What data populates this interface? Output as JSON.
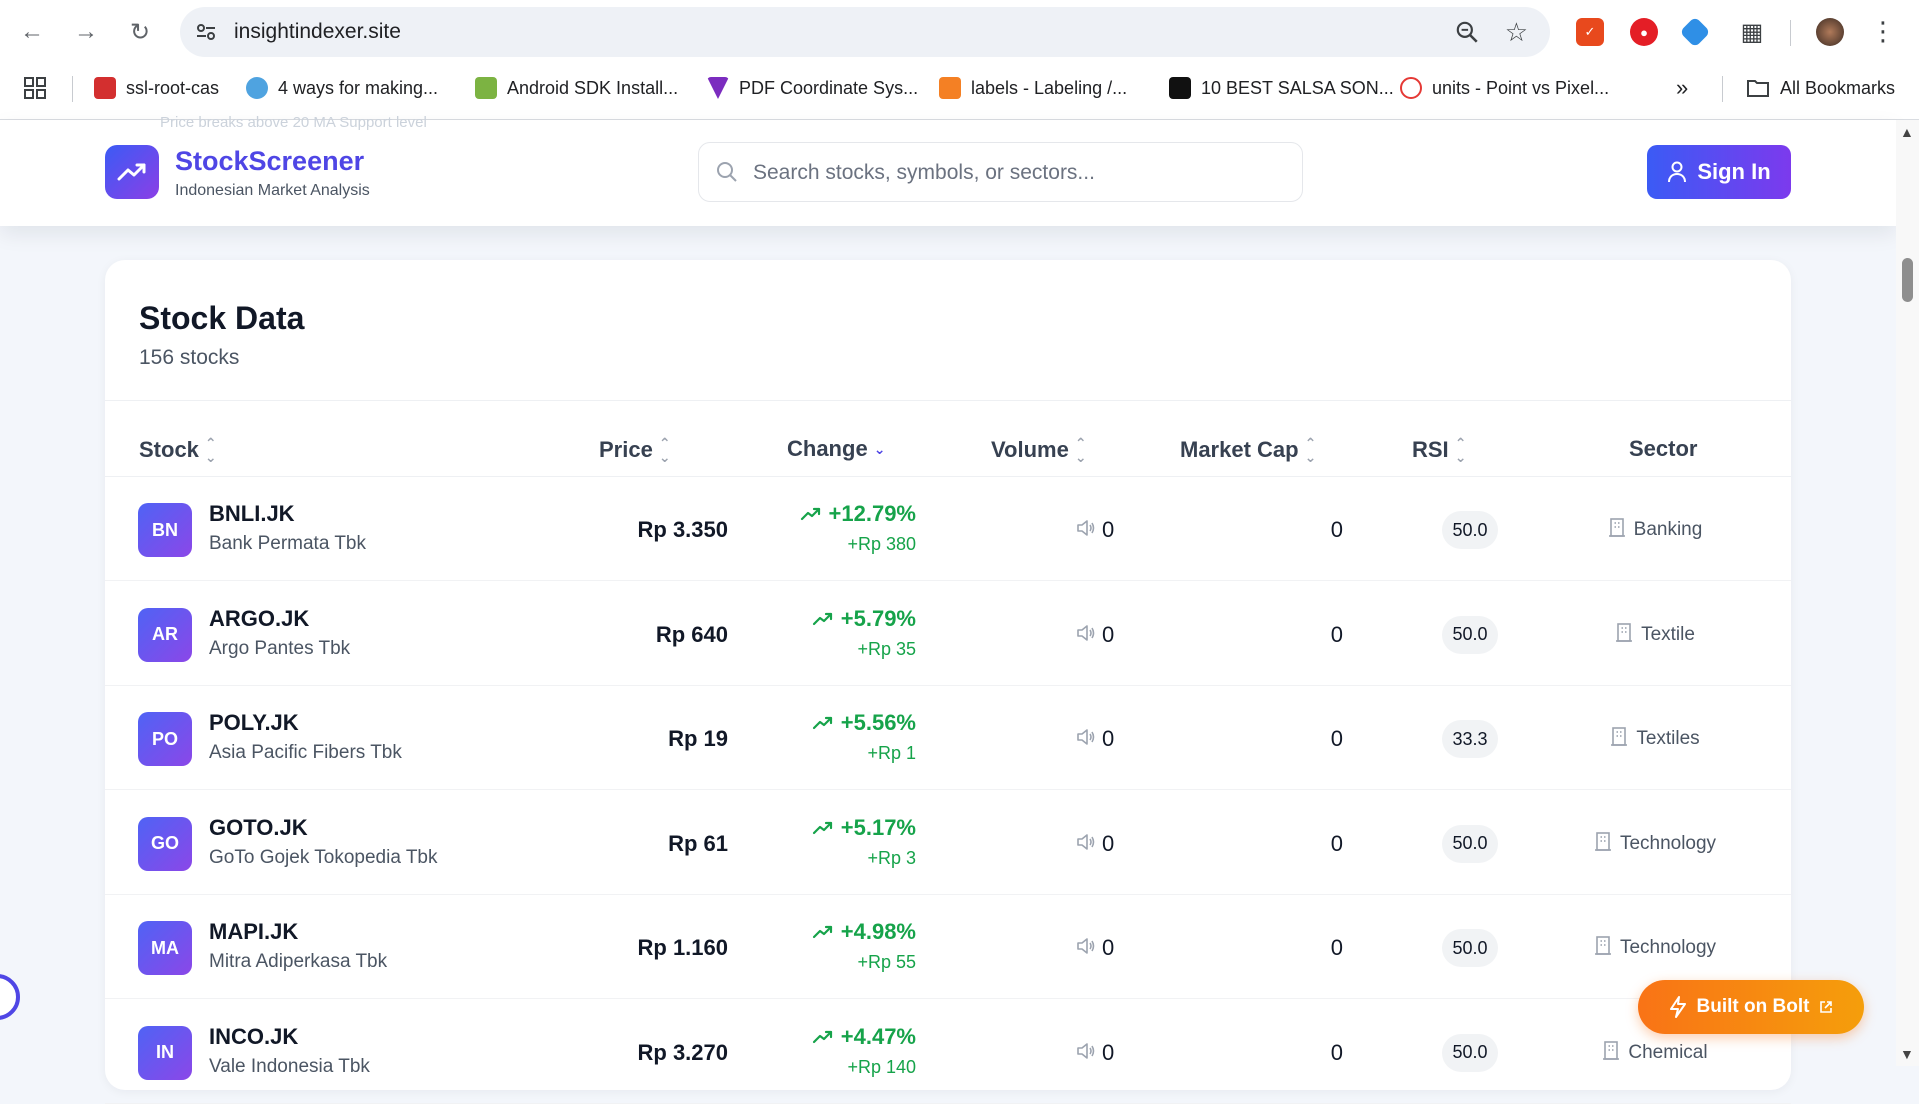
{
  "browser": {
    "url": "insightindexer.site",
    "bookmarks": [
      {
        "label": "ssl-root-cas",
        "color": "#d32f2f"
      },
      {
        "label": "4 ways for making...",
        "color": "#4fa3e0"
      },
      {
        "label": "Android SDK Install...",
        "color": "#7cb342"
      },
      {
        "label": "PDF Coordinate Sys...",
        "color": "#7b2cbf"
      },
      {
        "label": "labels - Labeling /...",
        "color": "#f48024"
      },
      {
        "label": "10 BEST SALSA SON...",
        "color": "#111111"
      },
      {
        "label": "units - Point vs Pixel...",
        "color": "#e53935"
      }
    ],
    "all_bookmarks": "All Bookmarks"
  },
  "header": {
    "brand": "StockScreener",
    "tagline": "Indonesian Market Analysis",
    "ghost_text": "Price breaks above 20 MA  Support level",
    "search_placeholder": "Search stocks, symbols, or sectors...",
    "sign_in": "Sign In"
  },
  "table": {
    "title": "Stock Data",
    "subtitle": "156 stocks",
    "columns": {
      "stock": "Stock",
      "price": "Price",
      "change": "Change",
      "volume": "Volume",
      "market_cap": "Market Cap",
      "rsi": "RSI",
      "sector": "Sector"
    },
    "rows": [
      {
        "initials": "BN",
        "symbol": "BNLI.JK",
        "name": "Bank Permata Tbk",
        "price": "Rp 3.350",
        "change_pct": "+12.79%",
        "change_abs": "+Rp 380",
        "volume": "0",
        "market_cap": "0",
        "rsi": "50.0",
        "sector": "Banking"
      },
      {
        "initials": "AR",
        "symbol": "ARGO.JK",
        "name": "Argo Pantes Tbk",
        "price": "Rp 640",
        "change_pct": "+5.79%",
        "change_abs": "+Rp 35",
        "volume": "0",
        "market_cap": "0",
        "rsi": "50.0",
        "sector": "Textile"
      },
      {
        "initials": "PO",
        "symbol": "POLY.JK",
        "name": "Asia Pacific Fibers Tbk",
        "price": "Rp 19",
        "change_pct": "+5.56%",
        "change_abs": "+Rp 1",
        "volume": "0",
        "market_cap": "0",
        "rsi": "33.3",
        "sector": "Textiles"
      },
      {
        "initials": "GO",
        "symbol": "GOTO.JK",
        "name": "GoTo Gojek Tokopedia Tbk",
        "price": "Rp 61",
        "change_pct": "+5.17%",
        "change_abs": "+Rp 3",
        "volume": "0",
        "market_cap": "0",
        "rsi": "50.0",
        "sector": "Technology"
      },
      {
        "initials": "MA",
        "symbol": "MAPI.JK",
        "name": "Mitra Adiperkasa Tbk",
        "price": "Rp 1.160",
        "change_pct": "+4.98%",
        "change_abs": "+Rp 55",
        "volume": "0",
        "market_cap": "0",
        "rsi": "50.0",
        "sector": "Technology"
      },
      {
        "initials": "IN",
        "symbol": "INCO.JK",
        "name": "Vale Indonesia Tbk",
        "price": "Rp 3.270",
        "change_pct": "+4.47%",
        "change_abs": "+Rp 140",
        "volume": "0",
        "market_cap": "0",
        "rsi": "50.0",
        "sector": "Chemical"
      }
    ]
  },
  "bolt_badge": "Built on Bolt",
  "colors": {
    "accent": "#4f46e5",
    "positive": "#16a34a",
    "bolt": "#f97316"
  }
}
